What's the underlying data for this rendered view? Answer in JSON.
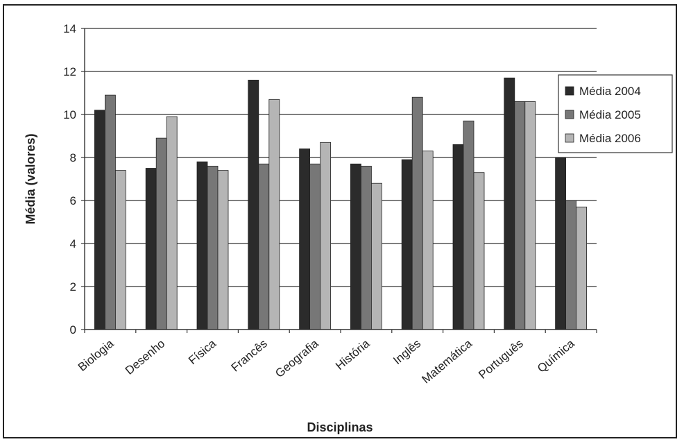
{
  "chart_data": {
    "type": "bar",
    "xlabel": "Disciplinas",
    "ylabel": "Média (valores)",
    "ylim": [
      0,
      14
    ],
    "yticks": [
      "0",
      "2",
      "4",
      "6",
      "8",
      "10",
      "12",
      "14"
    ],
    "grid": true,
    "legend_position": "right",
    "categories": [
      "Biologia",
      "Desenho",
      "Física",
      "Francês",
      "Geografia",
      "História",
      "Inglês",
      "Matemática",
      "Português",
      "Química"
    ],
    "series": [
      {
        "name": "Média 2004",
        "color": "#2b2b2b",
        "values": [
          10.2,
          7.5,
          7.8,
          11.6,
          8.4,
          7.7,
          7.9,
          8.6,
          11.7,
          8.0
        ]
      },
      {
        "name": "Média 2005",
        "color": "#777777",
        "values": [
          10.9,
          8.9,
          7.6,
          7.7,
          7.7,
          7.6,
          10.8,
          9.7,
          10.6,
          6.0
        ]
      },
      {
        "name": "Média 2006",
        "color": "#b5b5b5",
        "values": [
          7.4,
          9.9,
          7.4,
          10.7,
          8.7,
          6.8,
          8.3,
          7.3,
          10.6,
          5.7
        ]
      }
    ]
  }
}
